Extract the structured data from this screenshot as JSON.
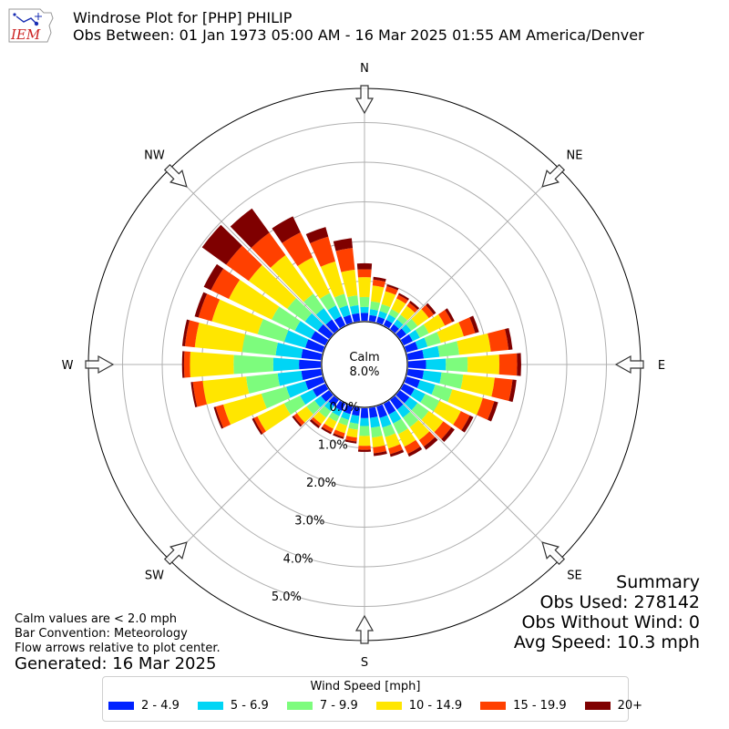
{
  "header": {
    "title": "Windrose Plot for [PHP] PHILIP",
    "subtitle": "Obs Between: 01 Jan 1973 05:00 AM - 16 Mar 2025 01:55 AM America/Denver",
    "logo_text": "IEM"
  },
  "notes": {
    "line1": "Calm values are < 2.0 mph",
    "line2": "Bar Convention: Meteorology",
    "line3": "Flow arrows relative to plot center.",
    "generated": "Generated: 16 Mar 2025"
  },
  "summary": {
    "title": "Summary",
    "obs_used": "Obs Used: 278142",
    "obs_without_wind": "Obs Without Wind: 0",
    "avg_speed": "Avg Speed: 10.3 mph"
  },
  "legend": {
    "title": "Wind Speed [mph]",
    "items": [
      "2 - 4.9",
      "5 - 6.9",
      "7 - 9.9",
      "10 - 14.9",
      "15 - 19.9",
      "20+"
    ]
  },
  "colors": {
    "bins": [
      "#0022ff",
      "#00d5f5",
      "#7dfc7d",
      "#ffe600",
      "#ff4000",
      "#7f0000"
    ],
    "grid": "#b0b0b0",
    "calm_text": "#000000",
    "logo_blue": "#1a2fb3",
    "logo_red": "#cc2222"
  },
  "chart_data": {
    "type": "windrose",
    "calm": {
      "label": "Calm",
      "value_text": "8.0%",
      "value": 8.0
    },
    "radial_ticks": [
      "0.0%",
      "1.0%",
      "2.0%",
      "3.0%",
      "4.0%",
      "5.0%"
    ],
    "radial_values": [
      0,
      1,
      2,
      3,
      4,
      5
    ],
    "direction_labels": [
      "N",
      "NE",
      "E",
      "SE",
      "S",
      "SW",
      "W",
      "NW"
    ],
    "direction_angles_deg": [
      0,
      45,
      90,
      135,
      180,
      225,
      270,
      315
    ],
    "sector_angles_deg": [
      0,
      10,
      20,
      30,
      40,
      50,
      60,
      70,
      80,
      90,
      100,
      110,
      120,
      130,
      140,
      150,
      160,
      170,
      180,
      190,
      200,
      210,
      220,
      230,
      240,
      250,
      260,
      270,
      280,
      290,
      300,
      310,
      320,
      330,
      340,
      350
    ],
    "bins": [
      "2 - 4.9",
      "5 - 6.9",
      "7 - 9.9",
      "10 - 14.9",
      "15 - 19.9",
      "20+"
    ],
    "cumulative_percent": [
      [
        0.2,
        0.35,
        0.6,
        1.1,
        1.3,
        1.45
      ],
      [
        0.15,
        0.3,
        0.5,
        0.9,
        1.05,
        1.12
      ],
      [
        0.15,
        0.3,
        0.48,
        0.82,
        0.95,
        1.0
      ],
      [
        0.15,
        0.3,
        0.45,
        0.75,
        0.85,
        0.9
      ],
      [
        0.15,
        0.3,
        0.45,
        0.72,
        0.82,
        0.88
      ],
      [
        0.2,
        0.35,
        0.55,
        0.9,
        1.05,
        1.12
      ],
      [
        0.25,
        0.45,
        0.7,
        1.15,
        1.35,
        1.42
      ],
      [
        0.3,
        0.55,
        0.9,
        1.5,
        1.8,
        1.9
      ],
      [
        0.4,
        0.8,
        1.3,
        2.1,
        2.55,
        2.65
      ],
      [
        0.45,
        0.95,
        1.5,
        2.3,
        2.75,
        2.85
      ],
      [
        0.4,
        0.85,
        1.4,
        2.2,
        2.65,
        2.75
      ],
      [
        0.35,
        0.75,
        1.2,
        2.0,
        2.3,
        2.4
      ],
      [
        0.3,
        0.6,
        1.0,
        1.6,
        1.85,
        1.95
      ],
      [
        0.3,
        0.55,
        0.9,
        1.35,
        1.6,
        1.7
      ],
      [
        0.3,
        0.55,
        0.85,
        1.25,
        1.45,
        1.55
      ],
      [
        0.3,
        0.55,
        0.85,
        1.2,
        1.4,
        1.48
      ],
      [
        0.3,
        0.55,
        0.8,
        1.1,
        1.25,
        1.32
      ],
      [
        0.25,
        0.5,
        0.75,
        1.0,
        1.15,
        1.22
      ],
      [
        0.25,
        0.45,
        0.7,
        0.95,
        1.05,
        1.1
      ],
      [
        0.2,
        0.4,
        0.55,
        0.75,
        0.85,
        0.9
      ],
      [
        0.2,
        0.35,
        0.5,
        0.7,
        0.8,
        0.85
      ],
      [
        0.2,
        0.35,
        0.5,
        0.7,
        0.8,
        0.85
      ],
      [
        0.2,
        0.35,
        0.55,
        0.75,
        0.82,
        0.88
      ],
      [
        0.25,
        0.45,
        0.7,
        1.0,
        1.1,
        1.15
      ],
      [
        0.35,
        0.7,
        1.15,
        1.9,
        2.0,
        2.05
      ],
      [
        0.45,
        0.95,
        1.6,
        2.6,
        2.8,
        2.85
      ],
      [
        0.5,
        1.1,
        1.9,
        3.0,
        3.25,
        3.3
      ],
      [
        0.55,
        1.2,
        2.2,
        3.3,
        3.45,
        3.5
      ],
      [
        0.5,
        1.15,
        2.0,
        3.2,
        3.45,
        3.52
      ],
      [
        0.45,
        1.0,
        1.7,
        2.9,
        3.25,
        3.35
      ],
      [
        0.4,
        0.85,
        1.5,
        2.7,
        3.2,
        3.4
      ],
      [
        0.35,
        0.75,
        1.3,
        2.5,
        3.2,
        3.95
      ],
      [
        0.3,
        0.65,
        1.1,
        2.3,
        3.0,
        3.75
      ],
      [
        0.25,
        0.55,
        0.9,
        1.9,
        2.6,
        3.05
      ],
      [
        0.2,
        0.45,
        0.75,
        1.6,
        2.25,
        2.5
      ],
      [
        0.2,
        0.4,
        0.65,
        1.3,
        1.85,
        2.1
      ]
    ]
  }
}
